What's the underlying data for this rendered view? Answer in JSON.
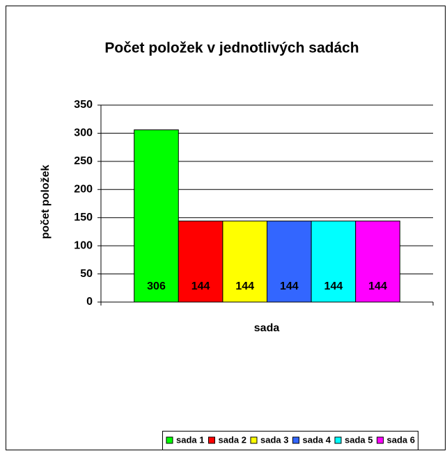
{
  "chart_data": {
    "type": "bar",
    "title": "Počet položek v jednotlivých sadách",
    "x_label": "sada",
    "y_label": "počet položek",
    "series": [
      {
        "name": "sada 1",
        "color": "#00ff00",
        "values": [
          306
        ]
      },
      {
        "name": "sada 2",
        "color": "#ff0000",
        "values": [
          144
        ]
      },
      {
        "name": "sada 3",
        "color": "#ffff00",
        "values": [
          144
        ]
      },
      {
        "name": "sada 4",
        "color": "#3366ff",
        "values": [
          144
        ]
      },
      {
        "name": "sada 5",
        "color": "#00ffff",
        "values": [
          144
        ]
      },
      {
        "name": "sada 6",
        "color": "#ff00ff",
        "values": [
          144
        ]
      }
    ],
    "ylim": [
      0,
      350
    ],
    "yticks": [
      0,
      50,
      100,
      150,
      200,
      250,
      300,
      350
    ],
    "grid": true,
    "legend": "bottom"
  }
}
